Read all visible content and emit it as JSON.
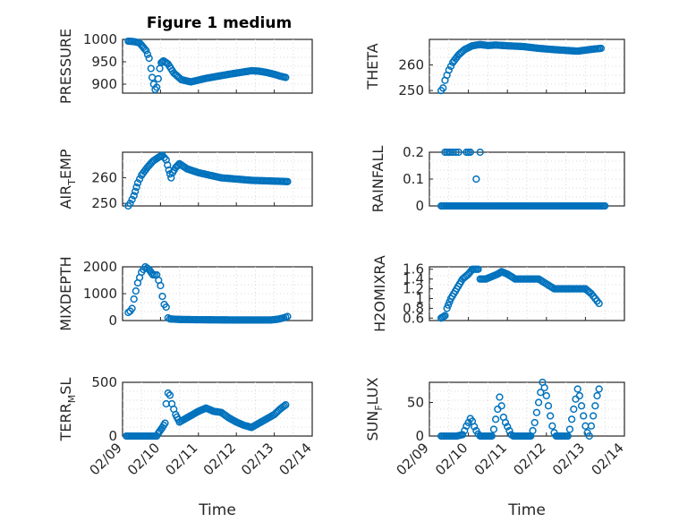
{
  "figure": {
    "title": "Figure 1 medium"
  },
  "chart_data": [
    {
      "type": "scatter",
      "id": "pressure",
      "ylabel": "PRESSURE",
      "ylim": [
        880,
        1000
      ],
      "yticks": [
        900,
        950,
        1000
      ],
      "xlim": [
        0,
        5
      ],
      "grid": true,
      "keypoints": [
        [
          0.15,
          996
        ],
        [
          0.3,
          995
        ],
        [
          0.45,
          992
        ],
        [
          0.55,
          982
        ],
        [
          0.62,
          975
        ],
        [
          0.7,
          958
        ],
        [
          0.75,
          935
        ],
        [
          0.78,
          915
        ],
        [
          0.82,
          900
        ],
        [
          0.86,
          888
        ],
        [
          0.9,
          893
        ],
        [
          0.94,
          912
        ],
        [
          0.98,
          935
        ],
        [
          1.02,
          948
        ],
        [
          1.08,
          952
        ],
        [
          1.2,
          945
        ],
        [
          1.35,
          925
        ],
        [
          1.55,
          910
        ],
        [
          1.8,
          905
        ],
        [
          2.2,
          913
        ],
        [
          2.8,
          922
        ],
        [
          3.4,
          930
        ],
        [
          3.6,
          929
        ],
        [
          3.8,
          926
        ],
        [
          4.0,
          922
        ],
        [
          4.15,
          918
        ],
        [
          4.3,
          915
        ]
      ],
      "marker": "circle-open",
      "color": "#0072bd"
    },
    {
      "type": "scatter",
      "id": "theta",
      "ylabel": "THETA",
      "ylim": [
        249,
        270
      ],
      "yticks": [
        250,
        260
      ],
      "xlim": [
        0,
        5
      ],
      "grid": true,
      "keypoints": [
        [
          0.3,
          250
        ],
        [
          0.35,
          251
        ],
        [
          0.4,
          254
        ],
        [
          0.5,
          258
        ],
        [
          0.6,
          261
        ],
        [
          0.75,
          264
        ],
        [
          0.9,
          266
        ],
        [
          1.1,
          267.5
        ],
        [
          1.3,
          268
        ],
        [
          1.5,
          267.6
        ],
        [
          1.7,
          267.8
        ],
        [
          2.0,
          267.5
        ],
        [
          2.4,
          267.2
        ],
        [
          2.8,
          266.5
        ],
        [
          3.2,
          266
        ],
        [
          3.6,
          265.6
        ],
        [
          3.8,
          265.4
        ],
        [
          4.0,
          265.8
        ],
        [
          4.2,
          266.2
        ],
        [
          4.4,
          266.5
        ]
      ],
      "marker": "circle-open",
      "color": "#0072bd"
    },
    {
      "type": "scatter",
      "id": "air_temp",
      "ylabel": "AIR",
      "ylabel_sub": "T",
      "ylabel_rest": "EMP",
      "ylim": [
        249,
        270
      ],
      "yticks": [
        250,
        260
      ],
      "xlim": [
        0,
        5
      ],
      "grid": true,
      "keypoints": [
        [
          0.15,
          249
        ],
        [
          0.2,
          250
        ],
        [
          0.3,
          253
        ],
        [
          0.4,
          258
        ],
        [
          0.5,
          261
        ],
        [
          0.65,
          264
        ],
        [
          0.8,
          266.5
        ],
        [
          0.95,
          268
        ],
        [
          1.05,
          268.8
        ],
        [
          1.15,
          267
        ],
        [
          1.22,
          263
        ],
        [
          1.28,
          260
        ],
        [
          1.32,
          262
        ],
        [
          1.4,
          264
        ],
        [
          1.5,
          265.5
        ],
        [
          1.7,
          263.5
        ],
        [
          2.0,
          262
        ],
        [
          2.3,
          261
        ],
        [
          2.6,
          260
        ],
        [
          3.0,
          259.5
        ],
        [
          3.4,
          259
        ],
        [
          3.8,
          258.8
        ],
        [
          4.2,
          258.6
        ],
        [
          4.35,
          258.5
        ]
      ],
      "marker": "circle-open",
      "color": "#0072bd"
    },
    {
      "type": "scatter",
      "id": "rainfall",
      "ylabel": "RAINFALL",
      "ylim": [
        0,
        0.2
      ],
      "yticks": [
        0,
        0.1,
        0.2
      ],
      "ytick_labels": [
        "0",
        "0.1",
        "0.2"
      ],
      "xlim": [
        0,
        5
      ],
      "grid": true,
      "keypoints": [
        [
          0.3,
          0
        ],
        [
          1.1,
          0
        ],
        [
          4.5,
          0
        ]
      ],
      "extra_points": [
        [
          0.4,
          0.2
        ],
        [
          0.45,
          0.2
        ],
        [
          0.5,
          0.2
        ],
        [
          0.55,
          0.2
        ],
        [
          0.6,
          0.2
        ],
        [
          0.68,
          0.2
        ],
        [
          0.75,
          0.2
        ],
        [
          0.95,
          0.2
        ],
        [
          1.0,
          0.2
        ],
        [
          1.05,
          0.2
        ],
        [
          1.3,
          0.2
        ],
        [
          1.2,
          0.1
        ]
      ],
      "marker": "circle-open",
      "color": "#0072bd"
    },
    {
      "type": "scatter",
      "id": "mixdepth",
      "ylabel": "MIXDEPTH",
      "ylim": [
        0,
        2000
      ],
      "yticks": [
        0,
        1000,
        2000
      ],
      "xlim": [
        0,
        5
      ],
      "grid": true,
      "keypoints": [
        [
          0.15,
          300
        ],
        [
          0.2,
          350
        ],
        [
          0.25,
          450
        ],
        [
          0.3,
          800
        ],
        [
          0.35,
          1100
        ],
        [
          0.4,
          1400
        ],
        [
          0.45,
          1600
        ],
        [
          0.5,
          1800
        ],
        [
          0.55,
          1900
        ],
        [
          0.6,
          2000
        ],
        [
          0.7,
          1900
        ],
        [
          0.8,
          1700
        ],
        [
          0.9,
          1700
        ],
        [
          0.95,
          1500
        ],
        [
          1.0,
          1300
        ],
        [
          1.05,
          900
        ],
        [
          1.1,
          600
        ],
        [
          1.15,
          500
        ],
        [
          1.2,
          100
        ],
        [
          1.25,
          60
        ],
        [
          1.5,
          40
        ],
        [
          2.0,
          30
        ],
        [
          3.0,
          20
        ],
        [
          3.6,
          20
        ],
        [
          3.9,
          20
        ],
        [
          4.1,
          50
        ],
        [
          4.25,
          100
        ],
        [
          4.35,
          150
        ]
      ],
      "marker": "circle-open",
      "color": "#0072bd"
    },
    {
      "type": "scatter",
      "id": "h2omixra",
      "ylabel": "H2OMIXRA",
      "ylim": [
        0.55,
        1.65
      ],
      "yticks": [
        0.6,
        0.8,
        1,
        1.2,
        1.4,
        1.6
      ],
      "ytick_labels": [
        "0.6",
        "0.8",
        "1",
        "1.2",
        "1.4",
        "1.6"
      ],
      "xlim": [
        0,
        5
      ],
      "grid": true,
      "keypoints": [
        [
          0.3,
          0.6
        ],
        [
          0.4,
          0.65
        ],
        [
          0.45,
          0.8
        ],
        [
          0.55,
          1.0
        ],
        [
          0.7,
          1.2
        ],
        [
          0.85,
          1.4
        ],
        [
          1.0,
          1.5
        ],
        [
          1.1,
          1.6
        ],
        [
          1.25,
          1.6
        ],
        [
          1.3,
          1.4
        ],
        [
          1.45,
          1.4
        ],
        [
          1.6,
          1.45
        ],
        [
          1.75,
          1.5
        ],
        [
          1.85,
          1.55
        ],
        [
          2.0,
          1.5
        ],
        [
          2.2,
          1.4
        ],
        [
          2.8,
          1.4
        ],
        [
          3.0,
          1.3
        ],
        [
          3.2,
          1.2
        ],
        [
          4.0,
          1.2
        ],
        [
          4.15,
          1.1
        ],
        [
          4.25,
          1.0
        ],
        [
          4.35,
          0.9
        ]
      ],
      "marker": "circle-open",
      "color": "#0072bd"
    },
    {
      "type": "scatter",
      "id": "terrain",
      "ylabel": "TERR",
      "ylabel_sub": "M",
      "ylabel_rest": "SL",
      "ylim": [
        0,
        500
      ],
      "yticks": [
        0,
        500
      ],
      "xlim": [
        0,
        5
      ],
      "xticks": [
        0,
        1,
        2,
        3,
        4,
        5
      ],
      "xtick_labels": [
        "02/09",
        "02/10",
        "02/11",
        "02/12",
        "02/13",
        "02/14"
      ],
      "xlabel": "Time",
      "grid": true,
      "keypoints": [
        [
          0.1,
          0
        ],
        [
          0.5,
          0
        ],
        [
          0.9,
          0
        ],
        [
          0.95,
          30
        ],
        [
          1.05,
          80
        ],
        [
          1.12,
          120
        ],
        [
          1.15,
          300
        ],
        [
          1.2,
          400
        ],
        [
          1.25,
          380
        ],
        [
          1.3,
          300
        ],
        [
          1.4,
          200
        ],
        [
          1.5,
          130
        ],
        [
          1.7,
          170
        ],
        [
          2.0,
          230
        ],
        [
          2.2,
          260
        ],
        [
          2.4,
          230
        ],
        [
          2.6,
          220
        ],
        [
          2.8,
          170
        ],
        [
          3.0,
          130
        ],
        [
          3.2,
          100
        ],
        [
          3.4,
          80
        ],
        [
          3.6,
          120
        ],
        [
          3.8,
          160
        ],
        [
          4.0,
          200
        ],
        [
          4.15,
          250
        ],
        [
          4.3,
          290
        ]
      ],
      "marker": "circle-open",
      "color": "#0072bd"
    },
    {
      "type": "scatter",
      "id": "sunflux",
      "ylabel": "SUN",
      "ylabel_sub": "F",
      "ylabel_rest": "LUX",
      "ylim": [
        0,
        80
      ],
      "yticks": [
        0,
        50
      ],
      "xlim": [
        0,
        5
      ],
      "xticks": [
        0,
        1,
        2,
        3,
        4,
        5
      ],
      "xtick_labels": [
        "02/09",
        "02/10",
        "02/11",
        "02/12",
        "02/13",
        "02/14"
      ],
      "xlabel": "Time",
      "grid": true,
      "keypoints": [
        [
          0.3,
          0
        ],
        [
          0.7,
          0
        ],
        [
          0.85,
          2
        ],
        [
          0.9,
          8
        ],
        [
          0.95,
          15
        ],
        [
          1.0,
          20
        ],
        [
          1.05,
          26
        ],
        [
          1.1,
          22
        ],
        [
          1.15,
          14
        ],
        [
          1.2,
          8
        ],
        [
          1.25,
          3
        ],
        [
          1.3,
          0
        ],
        [
          1.6,
          0
        ],
        [
          1.65,
          10
        ],
        [
          1.7,
          25
        ],
        [
          1.75,
          40
        ],
        [
          1.8,
          58
        ],
        [
          1.85,
          45
        ],
        [
          1.9,
          28
        ],
        [
          1.95,
          20
        ],
        [
          2.0,
          14
        ],
        [
          2.05,
          8
        ],
        [
          2.1,
          2
        ],
        [
          2.15,
          0
        ],
        [
          2.5,
          0
        ],
        [
          2.6,
          0
        ],
        [
          2.65,
          8
        ],
        [
          2.7,
          20
        ],
        [
          2.75,
          35
        ],
        [
          2.8,
          50
        ],
        [
          2.85,
          65
        ],
        [
          2.9,
          80
        ],
        [
          2.95,
          72
        ],
        [
          3.0,
          60
        ],
        [
          3.05,
          45
        ],
        [
          3.1,
          30
        ],
        [
          3.15,
          15
        ],
        [
          3.2,
          5
        ],
        [
          3.25,
          0
        ],
        [
          3.4,
          0
        ],
        [
          3.55,
          0
        ],
        [
          3.6,
          10
        ],
        [
          3.65,
          25
        ],
        [
          3.7,
          40
        ],
        [
          3.75,
          55
        ],
        [
          3.8,
          70
        ],
        [
          3.85,
          60
        ],
        [
          3.9,
          45
        ],
        [
          3.95,
          30
        ],
        [
          4.0,
          15
        ],
        [
          4.05,
          5
        ],
        [
          4.1,
          0
        ],
        [
          4.15,
          15
        ],
        [
          4.2,
          30
        ],
        [
          4.25,
          45
        ],
        [
          4.3,
          60
        ],
        [
          4.35,
          70
        ]
      ],
      "marker": "circle-open",
      "color": "#0072bd"
    }
  ]
}
